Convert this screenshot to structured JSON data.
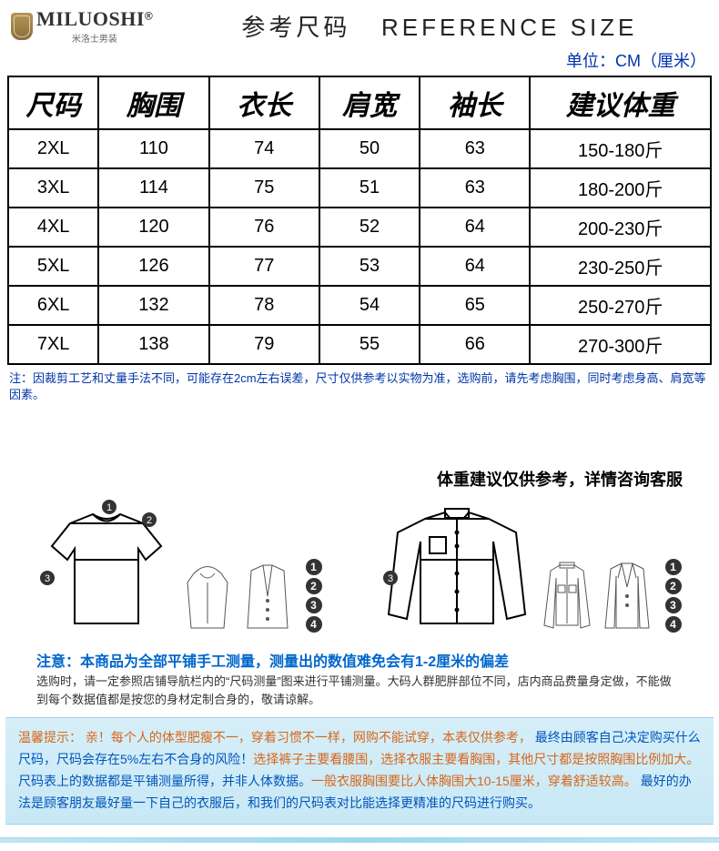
{
  "brand": {
    "name": "MILUOSHI",
    "reg": "®",
    "sub": "米洛士男装"
  },
  "title": {
    "zh": "参考尺码",
    "en": "REFERENCE SIZE"
  },
  "unit": "单位：CM（厘米）",
  "table": {
    "headers": [
      "尺码",
      "胸围",
      "衣长",
      "肩宽",
      "袖长",
      "建议体重"
    ],
    "rows": [
      [
        "2XL",
        "110",
        "74",
        "50",
        "63",
        "150-180斤"
      ],
      [
        "3XL",
        "114",
        "75",
        "51",
        "63",
        "180-200斤"
      ],
      [
        "4XL",
        "120",
        "76",
        "52",
        "64",
        "200-230斤"
      ],
      [
        "5XL",
        "126",
        "77",
        "53",
        "64",
        "230-250斤"
      ],
      [
        "6XL",
        "132",
        "78",
        "54",
        "65",
        "250-270斤"
      ],
      [
        "7XL",
        "138",
        "79",
        "55",
        "66",
        "270-300斤"
      ]
    ]
  },
  "note1": "注：因裁剪工艺和丈量手法不同，可能存在2cm左右误差，尺寸仅供参考以实物为准，选购前，请先考虑胸围，同时考虑身高、肩宽等因素。",
  "diagram_header": "体重建议仅供参考，详情咨询客服",
  "legend_nums": [
    "1",
    "2",
    "3",
    "4"
  ],
  "note_blue_title": "注意：本商品为全部平铺手工测量，测量出的数值难免会有1-2厘米的偏差",
  "note_small": "选购时，请一定参照店铺导航栏内的“尺码测量”图来进行平铺测量。大码人群肥胖部位不同，店内商品费量身定做，不能做到每个数据值都是按您的身材定制合身的，敬请谅解。",
  "tip": {
    "l1a": "温馨提示： 亲！每个人的体型肥瘦不一，穿着习惯不一样，网购不能试穿，本表仅供参考， ",
    "l1b": "最终由顾客自己决定购买什么尺码，尺码会存在5%左右不合身的风险！",
    "l1c": "选择裤子主要看腰围，选择衣服主要看胸围，其他尺寸都是按照胸围比例加大。  ",
    "l2a": "尺码表上的数据都是平铺测量所得，并非人体数据。",
    "l2b": "一般衣服胸围要比人体胸围大10-15厘米，穿着舒适较高。",
    "l3": "最好的办法是顾客朋友最好量一下自己的衣服后，和我们的尺码表对比能选择更精准的尺码进行购买。"
  }
}
